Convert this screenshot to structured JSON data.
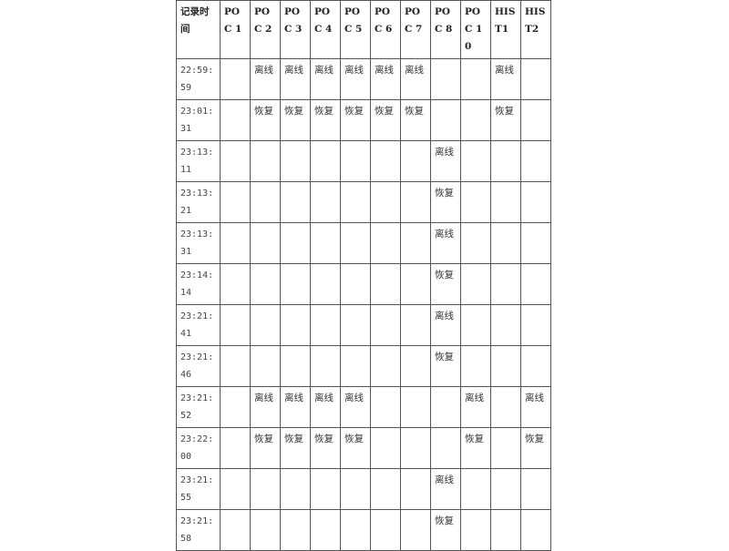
{
  "headers": [
    "记录时间",
    "POC 1",
    "POC 2",
    "POC 3",
    "POC 4",
    "POC 5",
    "POC 6",
    "POC 7",
    "POC 8",
    "POC 10",
    "HIST1",
    "HIST2"
  ],
  "rows": [
    [
      "22:59:59",
      "",
      "离线",
      "离线",
      "离线",
      "离线",
      "离线",
      "离线",
      "",
      "",
      "离线",
      ""
    ],
    [
      "23:01:31",
      "",
      "恢复",
      "恢复",
      "恢复",
      "恢复",
      "恢复",
      "恢复",
      "",
      "",
      "恢复",
      ""
    ],
    [
      "23:13:11",
      "",
      "",
      "",
      "",
      "",
      "",
      "",
      "离线",
      "",
      "",
      ""
    ],
    [
      "23:13:21",
      "",
      "",
      "",
      "",
      "",
      "",
      "",
      "恢复",
      "",
      "",
      ""
    ],
    [
      "23:13:31",
      "",
      "",
      "",
      "",
      "",
      "",
      "",
      "离线",
      "",
      "",
      ""
    ],
    [
      "23:14:14",
      "",
      "",
      "",
      "",
      "",
      "",
      "",
      "恢复",
      "",
      "",
      ""
    ],
    [
      "23:21:41",
      "",
      "",
      "",
      "",
      "",
      "",
      "",
      "离线",
      "",
      "",
      ""
    ],
    [
      "23:21:46",
      "",
      "",
      "",
      "",
      "",
      "",
      "",
      "恢复",
      "",
      "",
      ""
    ],
    [
      "23:21:52",
      "",
      "离线",
      "离线",
      "离线",
      "离线",
      "",
      "",
      "",
      "离线",
      "",
      "离线"
    ],
    [
      "23:22:00",
      "",
      "恢复",
      "恢复",
      "恢复",
      "恢复",
      "",
      "",
      "",
      "恢复",
      "",
      "恢复"
    ],
    [
      "23:21:55",
      "",
      "",
      "",
      "",
      "",
      "",
      "",
      "离线",
      "",
      "",
      ""
    ],
    [
      "23:21:58",
      "",
      "",
      "",
      "",
      "",
      "",
      "",
      "恢复",
      "",
      "",
      ""
    ]
  ]
}
